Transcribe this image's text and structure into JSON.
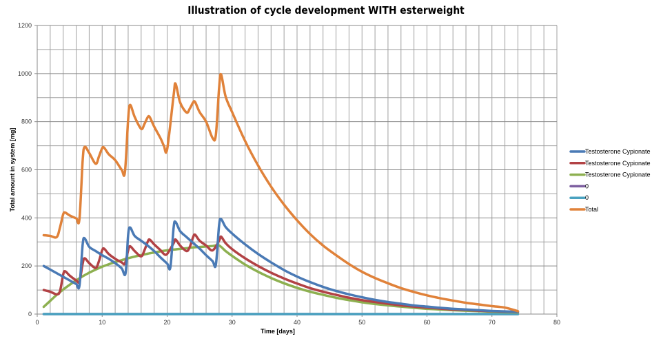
{
  "chart_data": {
    "type": "line",
    "title": "Illustration of cycle development WITH esterweight",
    "xlabel": "Time [days]",
    "ylabel": "Total amount in system [mg]",
    "xlim": [
      0,
      80
    ],
    "ylim": [
      0,
      1200
    ],
    "x_ticks": [
      0,
      10,
      20,
      30,
      40,
      50,
      60,
      70,
      80
    ],
    "y_ticks": [
      0,
      200,
      400,
      600,
      800,
      1000,
      1200
    ],
    "grid": true,
    "legend_position": "right",
    "series": [
      {
        "name": "Testosterone Cypionate",
        "color": "#4a7ab5",
        "points": [
          [
            1,
            200
          ],
          [
            2,
            185
          ],
          [
            3,
            170
          ],
          [
            4,
            155
          ],
          [
            5,
            140
          ],
          [
            6,
            125
          ],
          [
            6.5,
            118
          ],
          [
            7,
            290
          ],
          [
            7.3,
            315
          ],
          [
            8,
            280
          ],
          [
            9,
            262
          ],
          [
            10,
            245
          ],
          [
            11,
            230
          ],
          [
            12,
            212
          ],
          [
            13,
            190
          ],
          [
            13.6,
            170
          ],
          [
            14,
            330
          ],
          [
            14.3,
            360
          ],
          [
            15,
            325
          ],
          [
            16,
            305
          ],
          [
            17,
            285
          ],
          [
            18,
            262
          ],
          [
            19,
            235
          ],
          [
            20,
            210
          ],
          [
            20.5,
            195
          ],
          [
            21,
            360
          ],
          [
            21.3,
            383
          ],
          [
            22,
            345
          ],
          [
            23,
            320
          ],
          [
            24,
            296
          ],
          [
            25,
            272
          ],
          [
            26,
            245
          ],
          [
            27,
            220
          ],
          [
            27.5,
            205
          ],
          [
            28,
            370
          ],
          [
            28.3,
            395
          ],
          [
            29,
            362
          ],
          [
            30,
            335
          ],
          [
            32,
            290
          ],
          [
            34,
            250
          ],
          [
            36,
            215
          ],
          [
            38,
            183
          ],
          [
            40,
            156
          ],
          [
            42,
            133
          ],
          [
            44,
            113
          ],
          [
            46,
            96
          ],
          [
            48,
            82
          ],
          [
            50,
            70
          ],
          [
            52,
            59
          ],
          [
            54,
            50
          ],
          [
            56,
            43
          ],
          [
            58,
            36
          ],
          [
            60,
            31
          ],
          [
            62,
            26
          ],
          [
            64,
            22
          ],
          [
            66,
            19
          ],
          [
            68,
            16
          ],
          [
            70,
            13
          ],
          [
            72,
            11
          ],
          [
            74,
            10
          ]
        ]
      },
      {
        "name": "Testosterone Cypionate",
        "color": "#b24245",
        "points": [
          [
            1,
            100
          ],
          [
            2,
            93
          ],
          [
            3,
            82
          ],
          [
            3.5,
            95
          ],
          [
            4,
            165
          ],
          [
            4.3,
            178
          ],
          [
            5,
            160
          ],
          [
            6,
            140
          ],
          [
            6.5,
            135
          ],
          [
            7,
            210
          ],
          [
            7.3,
            232
          ],
          [
            8,
            212
          ],
          [
            9,
            192
          ],
          [
            9.5,
            220
          ],
          [
            10,
            265
          ],
          [
            10.3,
            272
          ],
          [
            11,
            250
          ],
          [
            12,
            230
          ],
          [
            13,
            215
          ],
          [
            13.5,
            210
          ],
          [
            14,
            265
          ],
          [
            14.3,
            282
          ],
          [
            15,
            262
          ],
          [
            16,
            240
          ],
          [
            16.5,
            265
          ],
          [
            17,
            300
          ],
          [
            17.3,
            310
          ],
          [
            18,
            290
          ],
          [
            19,
            265
          ],
          [
            19.5,
            250
          ],
          [
            20,
            250
          ],
          [
            21,
            295
          ],
          [
            21.3,
            310
          ],
          [
            22,
            285
          ],
          [
            23,
            262
          ],
          [
            23.5,
            280
          ],
          [
            24,
            320
          ],
          [
            24.3,
            330
          ],
          [
            25,
            305
          ],
          [
            26,
            285
          ],
          [
            27,
            265
          ],
          [
            28,
            305
          ],
          [
            28.3,
            322
          ],
          [
            29,
            295
          ],
          [
            30,
            270
          ],
          [
            32,
            232
          ],
          [
            34,
            200
          ],
          [
            36,
            172
          ],
          [
            38,
            148
          ],
          [
            40,
            127
          ],
          [
            42,
            108
          ],
          [
            44,
            93
          ],
          [
            46,
            80
          ],
          [
            48,
            68
          ],
          [
            50,
            58
          ],
          [
            52,
            50
          ],
          [
            54,
            43
          ],
          [
            56,
            36
          ],
          [
            58,
            31
          ],
          [
            60,
            27
          ],
          [
            62,
            23
          ],
          [
            64,
            19
          ],
          [
            66,
            17
          ],
          [
            68,
            14
          ],
          [
            70,
            12
          ],
          [
            72,
            10
          ],
          [
            74,
            9
          ]
        ]
      },
      {
        "name": "Testosterone Cypionate",
        "color": "#8db050",
        "points": [
          [
            1,
            30
          ],
          [
            2,
            55
          ],
          [
            3,
            80
          ],
          [
            4,
            102
          ],
          [
            5,
            122
          ],
          [
            6,
            140
          ],
          [
            7,
            157
          ],
          [
            8,
            172
          ],
          [
            9,
            185
          ],
          [
            10,
            197
          ],
          [
            11,
            207
          ],
          [
            12,
            216
          ],
          [
            13,
            224
          ],
          [
            14,
            232
          ],
          [
            15,
            239
          ],
          [
            16,
            245
          ],
          [
            17,
            251
          ],
          [
            18,
            256
          ],
          [
            19,
            261
          ],
          [
            20,
            265
          ],
          [
            21,
            268
          ],
          [
            22,
            271
          ],
          [
            23,
            274
          ],
          [
            24,
            277
          ],
          [
            25,
            279
          ],
          [
            26,
            281
          ],
          [
            27,
            283
          ],
          [
            28,
            285
          ],
          [
            29,
            262
          ],
          [
            30,
            242
          ],
          [
            32,
            206
          ],
          [
            34,
            176
          ],
          [
            36,
            150
          ],
          [
            38,
            128
          ],
          [
            40,
            109
          ],
          [
            42,
            93
          ],
          [
            44,
            80
          ],
          [
            46,
            68
          ],
          [
            48,
            58
          ],
          [
            50,
            49
          ],
          [
            52,
            42
          ],
          [
            54,
            36
          ],
          [
            56,
            31
          ],
          [
            58,
            26
          ],
          [
            60,
            22
          ],
          [
            62,
            19
          ],
          [
            64,
            16
          ],
          [
            66,
            14
          ],
          [
            68,
            12
          ],
          [
            70,
            10
          ],
          [
            72,
            8
          ],
          [
            74,
            7
          ]
        ]
      },
      {
        "name": "0",
        "color": "#7d5fa0",
        "points": [
          [
            1,
            0
          ],
          [
            74,
            0
          ]
        ]
      },
      {
        "name": "0",
        "color": "#4aa2c0",
        "points": [
          [
            1,
            0
          ],
          [
            74,
            0
          ]
        ]
      },
      {
        "name": "Total",
        "color": "#e0823a",
        "points": [
          [
            1,
            328
          ],
          [
            2,
            325
          ],
          [
            3,
            320
          ],
          [
            3.5,
            360
          ],
          [
            4,
            415
          ],
          [
            4.3,
            422
          ],
          [
            5,
            410
          ],
          [
            6,
            398
          ],
          [
            6.5,
            395
          ],
          [
            7,
            640
          ],
          [
            7.3,
            695
          ],
          [
            8,
            670
          ],
          [
            9,
            625
          ],
          [
            9.5,
            655
          ],
          [
            10,
            690
          ],
          [
            10.3,
            692
          ],
          [
            11,
            665
          ],
          [
            12,
            640
          ],
          [
            13,
            600
          ],
          [
            13.5,
            590
          ],
          [
            14,
            810
          ],
          [
            14.3,
            870
          ],
          [
            15,
            820
          ],
          [
            16,
            770
          ],
          [
            16.5,
            790
          ],
          [
            17,
            818
          ],
          [
            17.3,
            820
          ],
          [
            18,
            780
          ],
          [
            19,
            730
          ],
          [
            19.5,
            700
          ],
          [
            20,
            685
          ],
          [
            21,
            910
          ],
          [
            21.3,
            958
          ],
          [
            22,
            880
          ],
          [
            23,
            838
          ],
          [
            23.5,
            855
          ],
          [
            24,
            880
          ],
          [
            24.3,
            882
          ],
          [
            25,
            840
          ],
          [
            26,
            800
          ],
          [
            27,
            732
          ],
          [
            27.5,
            745
          ],
          [
            28,
            940
          ],
          [
            28.3,
            997
          ],
          [
            29,
            905
          ],
          [
            30,
            840
          ],
          [
            32,
            720
          ],
          [
            34,
            618
          ],
          [
            36,
            530
          ],
          [
            38,
            455
          ],
          [
            40,
            390
          ],
          [
            42,
            333
          ],
          [
            44,
            285
          ],
          [
            46,
            245
          ],
          [
            48,
            208
          ],
          [
            50,
            176
          ],
          [
            52,
            150
          ],
          [
            54,
            128
          ],
          [
            56,
            108
          ],
          [
            58,
            92
          ],
          [
            60,
            78
          ],
          [
            62,
            66
          ],
          [
            64,
            56
          ],
          [
            66,
            47
          ],
          [
            68,
            40
          ],
          [
            70,
            33
          ],
          [
            72,
            27
          ],
          [
            74,
            12
          ]
        ]
      }
    ]
  }
}
